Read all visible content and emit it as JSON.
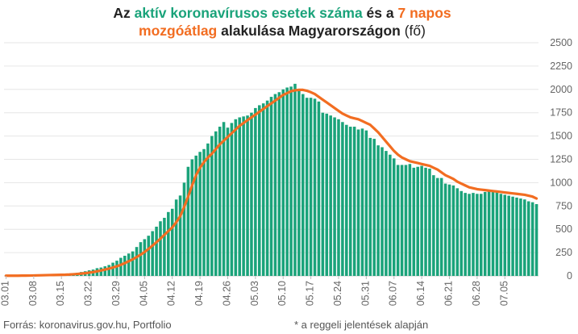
{
  "title": {
    "line1": [
      {
        "text": "Az ",
        "style": "bold"
      },
      {
        "text": "aktív koronavírusos esetek száma",
        "style": "green"
      },
      {
        "text": " és a ",
        "style": "bold"
      },
      {
        "text": "7 napos",
        "style": "orange"
      }
    ],
    "line2": [
      {
        "text": "mozgóátlag",
        "style": "orange"
      },
      {
        "text": " alakulása Magyarországon",
        "style": "bold"
      },
      {
        "text": " (fő)",
        "style": "normal"
      }
    ]
  },
  "footer": {
    "source": "Forrás: koronavirus.gov.hu, Portfolio",
    "note": "* a reggeli jelentések alapján"
  },
  "colors": {
    "bars": "#1aa37a",
    "line": "#f26d21",
    "grid": "#e6e6e6",
    "text": "#222222"
  },
  "chart_data": {
    "type": "bar",
    "overlay": "line",
    "ylim": [
      0,
      2500
    ],
    "y_ticks": [
      0,
      250,
      500,
      750,
      1000,
      1250,
      1500,
      1750,
      2000,
      2250,
      2500
    ],
    "y_axis_position": "right",
    "grid": true,
    "x_tick_labels": [
      "03.01",
      "03.08",
      "03.15",
      "03.22",
      "03.29",
      "04.05",
      "04.12",
      "04.19",
      "04.26",
      "05.03",
      "05.10",
      "05.17",
      "05.24",
      "05.31",
      "06.07",
      "06.14",
      "06.21",
      "06.28",
      "07.05"
    ],
    "series": [
      {
        "name": "aktív koronavírusos esetek száma",
        "kind": "bar",
        "values": [
          2,
          2,
          2,
          2,
          4,
          4,
          7,
          9,
          10,
          10,
          10,
          10,
          11,
          12,
          15,
          18,
          24,
          30,
          34,
          42,
          50,
          60,
          68,
          83,
          90,
          103,
          117,
          142,
          163,
          194,
          216,
          240,
          263,
          310,
          362,
          394,
          431,
          480,
          528,
          586,
          623,
          685,
          720,
          819,
          862,
          1000,
          1170,
          1250,
          1290,
          1330,
          1360,
          1420,
          1500,
          1550,
          1600,
          1650,
          1590,
          1640,
          1680,
          1700,
          1710,
          1720,
          1750,
          1800,
          1830,
          1850,
          1880,
          1920,
          1950,
          1970,
          2000,
          2020,
          2030,
          2060,
          1990,
          1950,
          1910,
          1910,
          1900,
          1870,
          1750,
          1740,
          1720,
          1700,
          1680,
          1650,
          1620,
          1600,
          1600,
          1570,
          1580,
          1560,
          1480,
          1470,
          1400,
          1380,
          1340,
          1300,
          1260,
          1190,
          1190,
          1190,
          1200,
          1160,
          1170,
          1180,
          1160,
          1150,
          1080,
          1050,
          1050,
          990,
          980,
          970,
          940,
          910,
          890,
          880,
          890,
          880,
          880,
          900,
          920,
          910,
          910,
          880,
          870,
          860,
          850,
          840,
          830,
          820,
          800,
          790,
          770
        ]
      },
      {
        "name": "7 napos mozgóátlag",
        "kind": "line",
        "values": [
          2,
          2,
          2,
          2,
          3,
          3,
          4,
          5,
          6,
          7,
          8,
          9,
          10,
          11,
          12,
          13,
          15,
          18,
          21,
          25,
          29,
          35,
          41,
          49,
          58,
          68,
          78,
          90,
          103,
          119,
          137,
          157,
          178,
          202,
          228,
          257,
          290,
          325,
          362,
          400,
          440,
          480,
          520,
          575,
          640,
          740,
          850,
          970,
          1080,
          1160,
          1220,
          1270,
          1310,
          1360,
          1410,
          1450,
          1490,
          1530,
          1570,
          1610,
          1640,
          1670,
          1700,
          1730,
          1760,
          1790,
          1820,
          1850,
          1880,
          1910,
          1940,
          1960,
          1980,
          1990,
          1995,
          1995,
          1985,
          1970,
          1950,
          1920,
          1890,
          1860,
          1830,
          1800,
          1770,
          1740,
          1720,
          1700,
          1690,
          1680,
          1660,
          1640,
          1620,
          1580,
          1540,
          1490,
          1440,
          1390,
          1340,
          1300,
          1270,
          1250,
          1230,
          1220,
          1210,
          1200,
          1190,
          1180,
          1160,
          1140,
          1110,
          1080,
          1060,
          1040,
          1010,
          990,
          970,
          950,
          940,
          930,
          925,
          920,
          915,
          910,
          905,
          900,
          895,
          890,
          885,
          880,
          875,
          870,
          860,
          850,
          830
        ]
      }
    ]
  }
}
